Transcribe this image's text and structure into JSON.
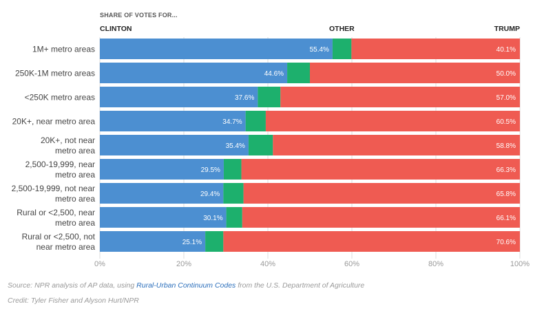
{
  "header": {
    "supertitle": "SHARE OF VOTES FOR...",
    "clinton_label": "CLINTON",
    "other_label": "OTHER",
    "trump_label": "TRUMP"
  },
  "colors": {
    "clinton": "#4c8fd1",
    "other": "#1db06d",
    "trump": "#ef5b52"
  },
  "footer": {
    "source_prefix": "Source: NPR analysis of AP data, using ",
    "source_link": "Rural-Urban Continuum Codes",
    "source_suffix": " from the U.S. Department of Agriculture",
    "credit": "Credit: Tyler Fisher and Alyson Hurt/NPR"
  },
  "chart_data": {
    "type": "bar",
    "orientation": "horizontal",
    "stacked": true,
    "categories": [
      [
        "1M+ metro areas"
      ],
      [
        "250K-1M metro areas"
      ],
      [
        "<250K metro areas"
      ],
      [
        "20K+, near metro area"
      ],
      [
        "20K+, not near",
        "metro area"
      ],
      [
        "2,500-19,999, near",
        "metro area"
      ],
      [
        "2,500-19,999, not near",
        "metro area"
      ],
      [
        "Rural or <2,500, near",
        "metro area"
      ],
      [
        "Rural or <2,500, not",
        "near metro area"
      ]
    ],
    "series": [
      {
        "name": "CLINTON",
        "values": [
          55.4,
          44.6,
          37.6,
          34.7,
          35.4,
          29.5,
          29.4,
          30.1,
          25.1
        ]
      },
      {
        "name": "OTHER",
        "values": [
          4.5,
          5.4,
          5.4,
          4.8,
          5.8,
          4.2,
          4.8,
          3.8,
          4.3
        ]
      },
      {
        "name": "TRUMP",
        "values": [
          40.1,
          50.0,
          57.0,
          60.5,
          58.8,
          66.3,
          65.8,
          66.1,
          70.6
        ]
      }
    ],
    "labels": {
      "CLINTON": [
        "55.4%",
        "44.6%",
        "37.6%",
        "34.7%",
        "35.4%",
        "29.5%",
        "29.4%",
        "30.1%",
        "25.1%"
      ],
      "TRUMP": [
        "40.1%",
        "50.0%",
        "57.0%",
        "60.5%",
        "58.8%",
        "66.3%",
        "65.8%",
        "66.1%",
        "70.6%"
      ]
    },
    "xlim": [
      0,
      100
    ],
    "xticks": [
      "0%",
      "20%",
      "40%",
      "60%",
      "80%",
      "100%"
    ],
    "xtick_values": [
      0,
      20,
      40,
      60,
      80,
      100
    ],
    "grid": true
  }
}
